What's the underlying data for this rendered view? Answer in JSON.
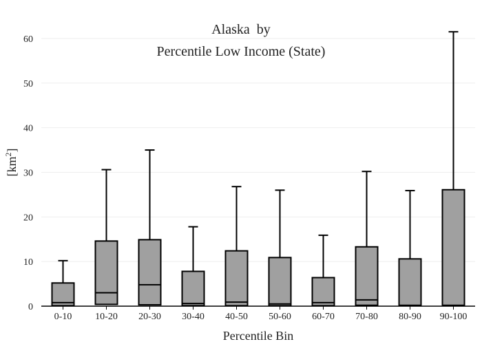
{
  "chart_data": {
    "type": "box",
    "title_line1": "Alaska  by",
    "title_line2": "Percentile Low Income (State)",
    "xlabel": "Percentile Bin",
    "ylabel": "[km",
    "ylabel_sup": "2",
    "ylabel_close": "]",
    "ylim": [
      0,
      64
    ],
    "yticks": [
      0,
      10,
      20,
      30,
      40,
      50,
      60
    ],
    "grid": true,
    "colors": {
      "box_fill": "#a0a0a0",
      "stroke": "#000000",
      "grid": "#eeeeee"
    },
    "categories": [
      "0-10",
      "10-20",
      "20-30",
      "30-40",
      "40-50",
      "50-60",
      "60-70",
      "70-80",
      "80-90",
      "90-100"
    ],
    "boxes": [
      {
        "min": 0,
        "q1": 0.1,
        "median": 0.8,
        "q3": 5.2,
        "max": 10.2
      },
      {
        "min": 0,
        "q1": 0.4,
        "median": 3.0,
        "q3": 14.6,
        "max": 30.6
      },
      {
        "min": 0,
        "q1": 0.3,
        "median": 4.8,
        "q3": 14.9,
        "max": 35.0
      },
      {
        "min": 0,
        "q1": 0.1,
        "median": 0.6,
        "q3": 7.8,
        "max": 17.8
      },
      {
        "min": 0,
        "q1": 0.1,
        "median": 0.9,
        "q3": 12.4,
        "max": 26.8
      },
      {
        "min": 0,
        "q1": 0.1,
        "median": 0.5,
        "q3": 10.9,
        "max": 26.0
      },
      {
        "min": 0,
        "q1": 0.1,
        "median": 0.8,
        "q3": 6.4,
        "max": 15.9
      },
      {
        "min": 0,
        "q1": 0.2,
        "median": 1.4,
        "q3": 13.3,
        "max": 30.2
      },
      {
        "min": 0,
        "q1": 0.1,
        "median": 0.2,
        "q3": 10.6,
        "max": 25.9
      },
      {
        "min": 0,
        "q1": 0.1,
        "median": 0.2,
        "q3": 26.1,
        "max": 61.5
      }
    ]
  }
}
